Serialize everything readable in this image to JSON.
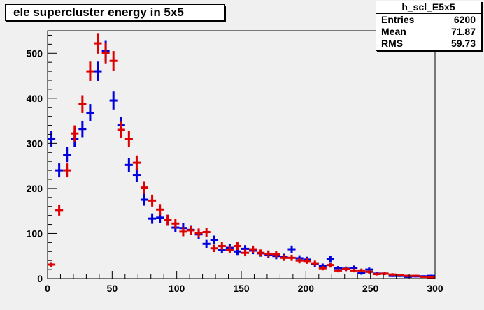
{
  "title": "ele supercluster energy in 5x5",
  "stats": {
    "name": "h_scl_E5x5",
    "rows": [
      {
        "key": "Entries",
        "value": "6200"
      },
      {
        "key": "Mean",
        "value": "71.87"
      },
      {
        "key": "RMS",
        "value": "59.73"
      }
    ]
  },
  "chart_data": {
    "type": "scatter",
    "title": "ele supercluster energy in 5x5",
    "xlabel": "",
    "ylabel": "",
    "xlim": [
      0,
      300
    ],
    "ylim": [
      0,
      550
    ],
    "x_ticks": [
      0,
      50,
      100,
      150,
      200,
      250,
      300
    ],
    "y_ticks": [
      0,
      100,
      200,
      300,
      400,
      500
    ],
    "bin_width": 6,
    "grid": false,
    "background": "#f0f0f0",
    "series": [
      {
        "color": "#0000dd",
        "points": [
          {
            "x": 3,
            "y": 310
          },
          {
            "x": 9,
            "y": 240
          },
          {
            "x": 15,
            "y": 275
          },
          {
            "x": 21,
            "y": 310
          },
          {
            "x": 27,
            "y": 332
          },
          {
            "x": 33,
            "y": 368
          },
          {
            "x": 39,
            "y": 460
          },
          {
            "x": 45,
            "y": 505
          },
          {
            "x": 51,
            "y": 395
          },
          {
            "x": 57,
            "y": 340
          },
          {
            "x": 63,
            "y": 252
          },
          {
            "x": 69,
            "y": 230
          },
          {
            "x": 75,
            "y": 175
          },
          {
            "x": 81,
            "y": 133
          },
          {
            "x": 87,
            "y": 135
          },
          {
            "x": 93,
            "y": 130
          },
          {
            "x": 99,
            "y": 113
          },
          {
            "x": 105,
            "y": 112
          },
          {
            "x": 111,
            "y": 108
          },
          {
            "x": 117,
            "y": 98
          },
          {
            "x": 123,
            "y": 77
          },
          {
            "x": 129,
            "y": 86
          },
          {
            "x": 135,
            "y": 64
          },
          {
            "x": 141,
            "y": 68
          },
          {
            "x": 147,
            "y": 60
          },
          {
            "x": 153,
            "y": 66
          },
          {
            "x": 159,
            "y": 62
          },
          {
            "x": 165,
            "y": 56
          },
          {
            "x": 171,
            "y": 53
          },
          {
            "x": 177,
            "y": 50
          },
          {
            "x": 183,
            "y": 48
          },
          {
            "x": 189,
            "y": 65
          },
          {
            "x": 195,
            "y": 45
          },
          {
            "x": 201,
            "y": 42
          },
          {
            "x": 207,
            "y": 32
          },
          {
            "x": 213,
            "y": 28
          },
          {
            "x": 219,
            "y": 43
          },
          {
            "x": 225,
            "y": 23
          },
          {
            "x": 231,
            "y": 22
          },
          {
            "x": 237,
            "y": 24
          },
          {
            "x": 243,
            "y": 12
          },
          {
            "x": 249,
            "y": 20
          },
          {
            "x": 255,
            "y": 11
          },
          {
            "x": 261,
            "y": 11
          },
          {
            "x": 267,
            "y": 6
          },
          {
            "x": 273,
            "y": 6
          },
          {
            "x": 279,
            "y": 4
          },
          {
            "x": 285,
            "y": 5
          },
          {
            "x": 291,
            "y": 5
          },
          {
            "x": 297,
            "y": 6
          }
        ]
      },
      {
        "color": "#dd0000",
        "points": [
          {
            "x": 3,
            "y": 31
          },
          {
            "x": 9,
            "y": 152
          },
          {
            "x": 15,
            "y": 240
          },
          {
            "x": 21,
            "y": 322
          },
          {
            "x": 27,
            "y": 387
          },
          {
            "x": 33,
            "y": 460
          },
          {
            "x": 39,
            "y": 522
          },
          {
            "x": 45,
            "y": 500
          },
          {
            "x": 51,
            "y": 483
          },
          {
            "x": 57,
            "y": 330
          },
          {
            "x": 63,
            "y": 310
          },
          {
            "x": 69,
            "y": 257
          },
          {
            "x": 75,
            "y": 202
          },
          {
            "x": 81,
            "y": 173
          },
          {
            "x": 87,
            "y": 153
          },
          {
            "x": 93,
            "y": 130
          },
          {
            "x": 99,
            "y": 122
          },
          {
            "x": 105,
            "y": 104
          },
          {
            "x": 111,
            "y": 107
          },
          {
            "x": 117,
            "y": 101
          },
          {
            "x": 123,
            "y": 103
          },
          {
            "x": 129,
            "y": 67
          },
          {
            "x": 135,
            "y": 72
          },
          {
            "x": 141,
            "y": 64
          },
          {
            "x": 147,
            "y": 72
          },
          {
            "x": 153,
            "y": 57
          },
          {
            "x": 159,
            "y": 65
          },
          {
            "x": 165,
            "y": 57
          },
          {
            "x": 171,
            "y": 55
          },
          {
            "x": 177,
            "y": 54
          },
          {
            "x": 183,
            "y": 46
          },
          {
            "x": 189,
            "y": 46
          },
          {
            "x": 195,
            "y": 40
          },
          {
            "x": 201,
            "y": 39
          },
          {
            "x": 207,
            "y": 34
          },
          {
            "x": 213,
            "y": 23
          },
          {
            "x": 219,
            "y": 30
          },
          {
            "x": 225,
            "y": 18
          },
          {
            "x": 231,
            "y": 21
          },
          {
            "x": 237,
            "y": 18
          },
          {
            "x": 243,
            "y": 18
          },
          {
            "x": 249,
            "y": 15
          },
          {
            "x": 255,
            "y": 10
          },
          {
            "x": 261,
            "y": 11
          },
          {
            "x": 267,
            "y": 9
          },
          {
            "x": 273,
            "y": 7
          },
          {
            "x": 279,
            "y": 6
          },
          {
            "x": 285,
            "y": 6
          },
          {
            "x": 291,
            "y": 4
          },
          {
            "x": 297,
            "y": 3
          }
        ]
      }
    ]
  }
}
